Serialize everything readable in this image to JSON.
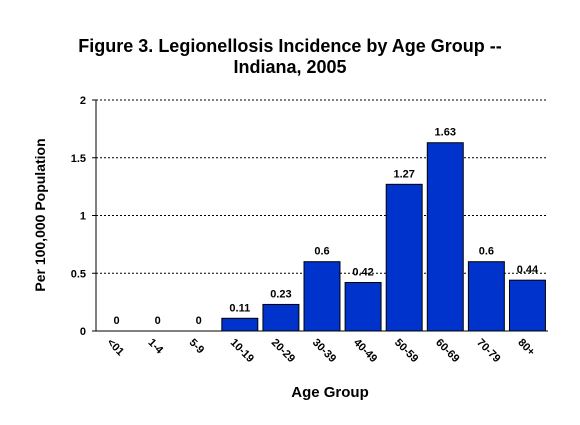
{
  "chart_data": {
    "type": "bar",
    "title_line1": "Figure 3.  Legionellosis Incidence by Age Group --",
    "title_line2": "Indiana, 2005",
    "xlabel": "Age Group",
    "ylabel": "Per 100,000 Population",
    "ylim": [
      0,
      2
    ],
    "yticks": [
      "0",
      "0.5",
      "1",
      "1.5",
      "2"
    ],
    "grid": "horizontal-dotted",
    "bar_color": "#0033cc",
    "categories": [
      "<01",
      "1-4",
      "5-9",
      "10-19",
      "20-29",
      "30-39",
      "40-49",
      "50-59",
      "60-69",
      "70-79",
      "80+"
    ],
    "values": [
      0,
      0,
      0,
      0.11,
      0.23,
      0.6,
      0.42,
      1.27,
      1.63,
      0.6,
      0.44
    ],
    "data_labels": [
      "0",
      "0",
      "0",
      "0.11",
      "0.23",
      "0.6",
      "0.42",
      "1.27",
      "1.63",
      "0.6",
      "0.44"
    ]
  }
}
